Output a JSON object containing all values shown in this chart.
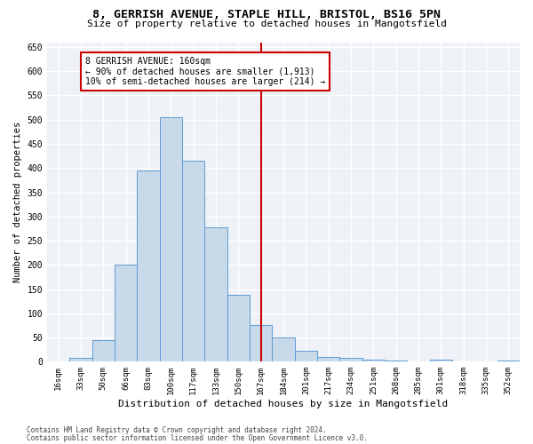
{
  "title_line1": "8, GERRISH AVENUE, STAPLE HILL, BRISTOL, BS16 5PN",
  "title_line2": "Size of property relative to detached houses in Mangotsfield",
  "xlabel": "Distribution of detached houses by size in Mangotsfield",
  "ylabel": "Number of detached properties",
  "bar_labels": [
    "16sqm",
    "33sqm",
    "50sqm",
    "66sqm",
    "83sqm",
    "100sqm",
    "117sqm",
    "133sqm",
    "150sqm",
    "167sqm",
    "184sqm",
    "201sqm",
    "217sqm",
    "234sqm",
    "251sqm",
    "268sqm",
    "285sqm",
    "301sqm",
    "318sqm",
    "335sqm",
    "352sqm"
  ],
  "bar_values": [
    0,
    8,
    45,
    200,
    395,
    505,
    415,
    278,
    138,
    75,
    50,
    22,
    10,
    8,
    5,
    3,
    0,
    5,
    0,
    0,
    2
  ],
  "bar_color": "#c8daea",
  "bar_edge_color": "#5b9bd5",
  "vline_x_index": 9.0,
  "vline_color": "#cc0000",
  "annotation_text": "8 GERRISH AVENUE: 160sqm\n← 90% of detached houses are smaller (1,913)\n10% of semi-detached houses are larger (214) →",
  "annotation_box_color": "white",
  "annotation_box_edge_color": "#cc0000",
  "ylim": [
    0,
    660
  ],
  "yticks": [
    0,
    50,
    100,
    150,
    200,
    250,
    300,
    350,
    400,
    450,
    500,
    550,
    600,
    650
  ],
  "background_color": "#eef2f7",
  "grid_color": "white",
  "footer_line1": "Contains HM Land Registry data © Crown copyright and database right 2024.",
  "footer_line2": "Contains public sector information licensed under the Open Government Licence v3.0."
}
